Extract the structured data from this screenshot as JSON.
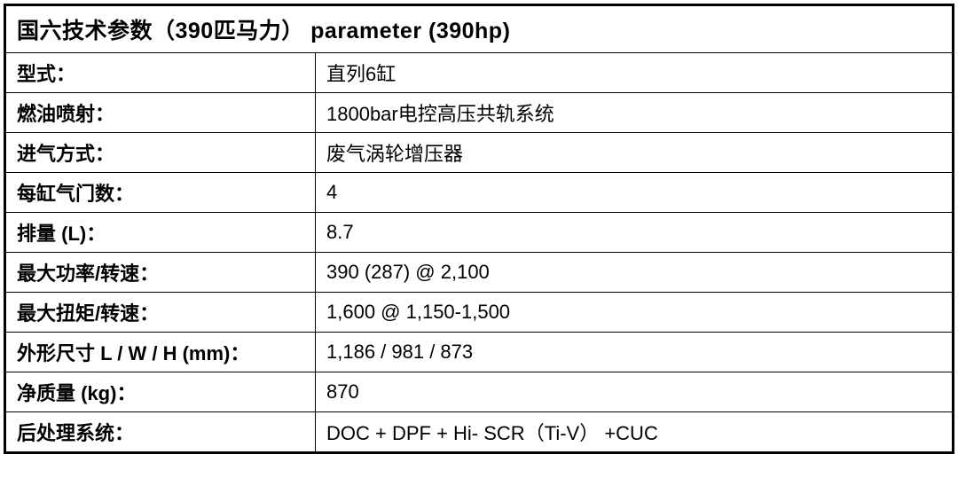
{
  "spec_table": {
    "type": "table",
    "header": "国六技术参数（390匹马力） parameter (390hp)",
    "header_fontsize": 25,
    "cell_fontsize": 22,
    "border_color": "#000000",
    "outer_border_width": 3,
    "inner_border_width": 1.5,
    "background_color": "#ffffff",
    "text_color": "#000000",
    "label_column_width": 350,
    "rows": [
      {
        "label": "型式：",
        "value": "直列6缸"
      },
      {
        "label": "燃油喷射：",
        "value": "1800bar电控高压共轨系统"
      },
      {
        "label": "进气方式：",
        "value": "废气涡轮增压器"
      },
      {
        "label": "每缸气门数：",
        "value": "4"
      },
      {
        "label": "排量 (L)：",
        "value": "8.7"
      },
      {
        "label": "最大功率/转速：",
        "value": "390 (287) @ 2,100"
      },
      {
        "label": "最大扭矩/转速：",
        "value": "1,600 @ 1,150-1,500"
      },
      {
        "label": "外形尺寸 L / W / H (mm)：",
        "value": "1,186 / 981 / 873"
      },
      {
        "label": "净质量 (kg)：",
        "value": "870"
      },
      {
        "label": "后处理系统：",
        "value": "DOC + DPF + Hi- SCR（Ti-V） +CUC"
      }
    ]
  }
}
